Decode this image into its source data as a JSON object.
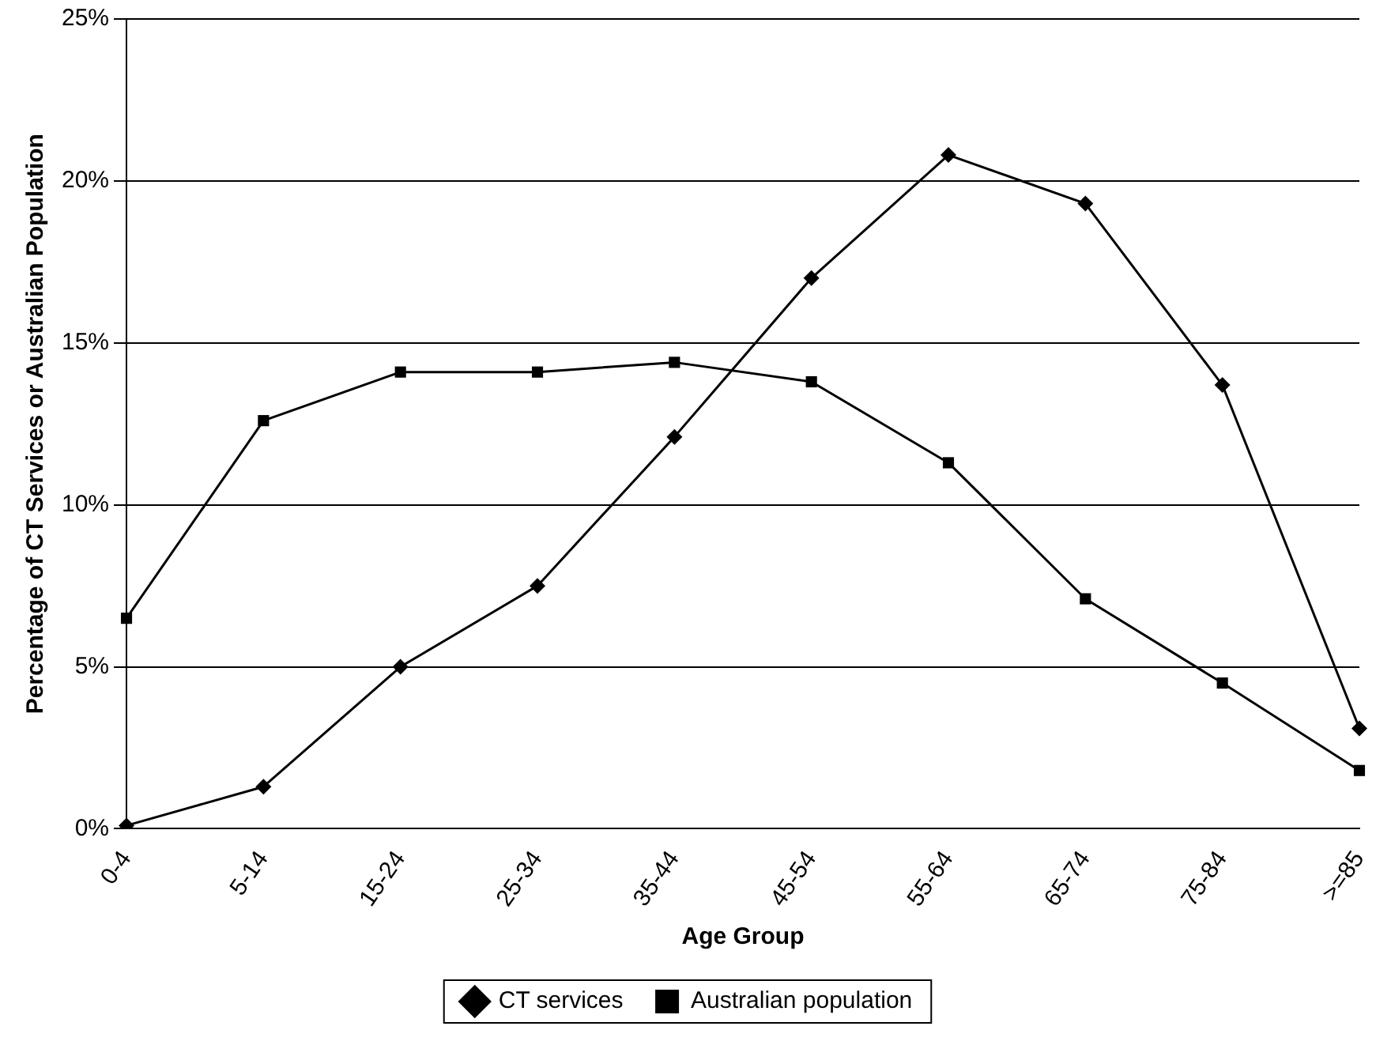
{
  "chart_data": {
    "type": "line",
    "xlabel": "Age Group",
    "ylabel": "Percentage of CT Services or Australian Population",
    "categories": [
      "0-4",
      "5-14",
      "15-24",
      "25-34",
      "35-44",
      "45-54",
      "55-64",
      "65-74",
      "75-84",
      ">=85"
    ],
    "series": [
      {
        "name": "CT services",
        "color": "#000000",
        "marker": "diamond",
        "values": [
          0.1,
          1.3,
          5.0,
          7.5,
          12.1,
          17.0,
          20.8,
          19.3,
          13.7,
          3.1
        ]
      },
      {
        "name": "Australian population",
        "color": "#000000",
        "marker": "square",
        "values": [
          6.5,
          12.6,
          14.1,
          14.1,
          14.4,
          13.8,
          11.3,
          7.1,
          4.5,
          1.8
        ]
      }
    ],
    "ylim": [
      0,
      25
    ],
    "yticks": [
      {
        "value": 0,
        "label": "0%"
      },
      {
        "value": 5,
        "label": "5%"
      },
      {
        "value": 10,
        "label": "10%"
      },
      {
        "value": 15,
        "label": "15%"
      },
      {
        "value": 20,
        "label": "20%"
      },
      {
        "value": 25,
        "label": "25%"
      }
    ],
    "grid": "y",
    "legend": "bottom",
    "line_style": "solid"
  }
}
